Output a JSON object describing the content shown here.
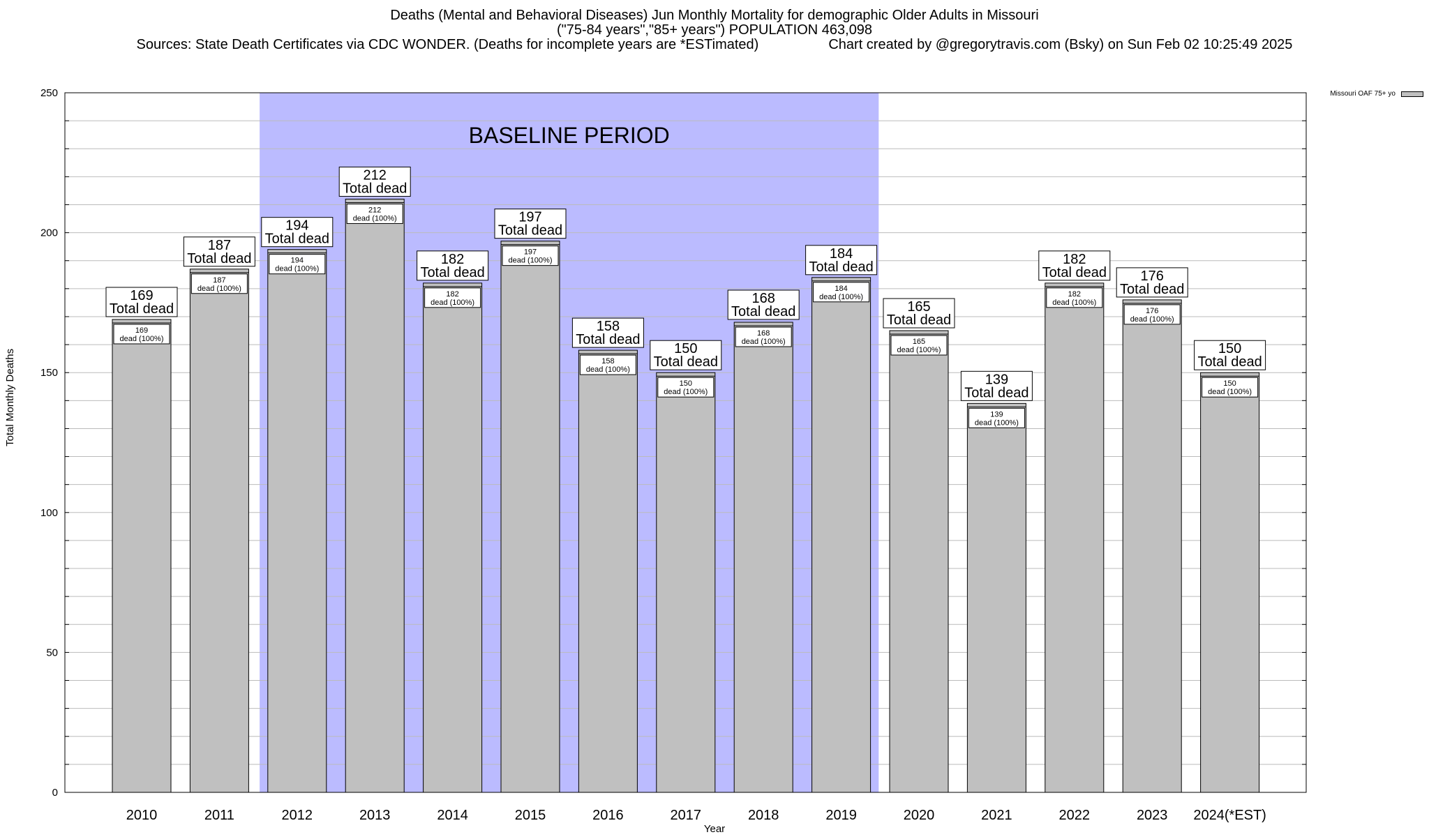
{
  "header": {
    "title": "Deaths (Mental and Behavioral Diseases) Jun Monthly Mortality for demographic Older Adults in Missouri",
    "subtitle": "(\"75-84 years\",\"85+ years\") POPULATION 463,098",
    "sources": "Sources: State Death Certificates via CDC WONDER. (Deaths for incomplete years are *ESTimated)",
    "credit": "Chart created by @gregorytravis.com (Bsky) on Sun Feb 02 10:25:49 2025"
  },
  "chart_data": {
    "type": "bar",
    "xlabel": "Year",
    "ylabel": "Total Monthly Deaths",
    "ylim": [
      0,
      250
    ],
    "yticks": [
      0,
      50,
      100,
      150,
      200,
      250
    ],
    "grid": true,
    "categories": [
      "2010",
      "2011",
      "2012",
      "2013",
      "2014",
      "2015",
      "2016",
      "2017",
      "2018",
      "2019",
      "2020",
      "2021",
      "2022",
      "2023",
      "2024(*EST)"
    ],
    "series": [
      {
        "name": "Missouri OAF 75+ yo",
        "color": "#c0c0c0",
        "values": [
          169,
          187,
          194,
          212,
          182,
          197,
          158,
          150,
          168,
          184,
          165,
          139,
          182,
          176,
          150
        ]
      }
    ],
    "bar_label_top": "Total dead",
    "bar_label_inner": "dead (100%)",
    "baseline": {
      "label": "BASELINE PERIOD",
      "from": "2012",
      "to": "2019",
      "color": "#bbbbff"
    },
    "legend_position": "top-right"
  }
}
